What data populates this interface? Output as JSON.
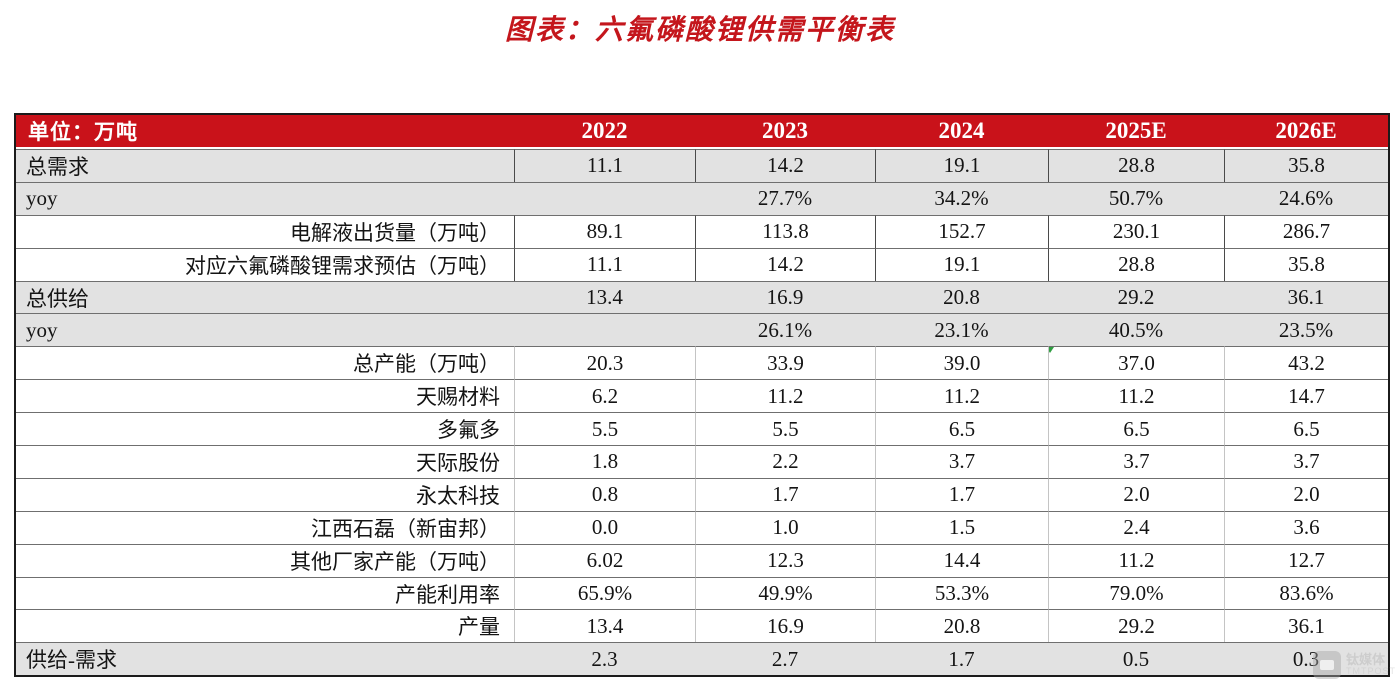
{
  "title": "图表：六氟磷酸锂供需平衡表",
  "colors": {
    "header_red": "#c9121a",
    "title_red": "#c4161c",
    "gray_row": "#e2e2e2",
    "marker_green": "#2f9e41"
  },
  "table": {
    "unit_label": "单位：万吨",
    "years": [
      "2022",
      "2023",
      "2024",
      "2025E",
      "2026E"
    ],
    "rows": [
      {
        "label": "总需求",
        "align": "left",
        "bg": "gray",
        "vlines": "dark",
        "values": [
          "11.1",
          "14.2",
          "19.1",
          "28.8",
          "35.8"
        ]
      },
      {
        "label": "yoy",
        "align": "left",
        "bg": "gray",
        "vlines": "none",
        "values": [
          "",
          "27.7%",
          "34.2%",
          "50.7%",
          "24.6%"
        ]
      },
      {
        "label": "电解液出货量（万吨）",
        "align": "right",
        "bg": "white",
        "vlines": "dark",
        "values": [
          "89.1",
          "113.8",
          "152.7",
          "230.1",
          "286.7"
        ]
      },
      {
        "label": "对应六氟磷酸锂需求预估（万吨）",
        "align": "right",
        "bg": "white",
        "vlines": "dark",
        "values": [
          "11.1",
          "14.2",
          "19.1",
          "28.8",
          "35.8"
        ]
      },
      {
        "label": "总供给",
        "align": "left",
        "bg": "gray",
        "vlines": "none",
        "values": [
          "13.4",
          "16.9",
          "20.8",
          "29.2",
          "36.1"
        ]
      },
      {
        "label": "yoy",
        "align": "left",
        "bg": "gray",
        "vlines": "none",
        "values": [
          "",
          "26.1%",
          "23.1%",
          "40.5%",
          "23.5%"
        ]
      },
      {
        "label": "总产能（万吨）",
        "align": "right",
        "bg": "white",
        "vlines": "light",
        "values": [
          "20.3",
          "33.9",
          "39.0",
          "37.0",
          "43.2"
        ]
      },
      {
        "label": "天赐材料",
        "align": "right",
        "bg": "white",
        "vlines": "light",
        "values": [
          "6.2",
          "11.2",
          "11.2",
          "11.2",
          "14.7"
        ]
      },
      {
        "label": "多氟多",
        "align": "right",
        "bg": "white",
        "vlines": "light",
        "values": [
          "5.5",
          "5.5",
          "6.5",
          "6.5",
          "6.5"
        ]
      },
      {
        "label": "天际股份",
        "align": "right",
        "bg": "white",
        "vlines": "light",
        "values": [
          "1.8",
          "2.2",
          "3.7",
          "3.7",
          "3.7"
        ]
      },
      {
        "label": "永太科技",
        "align": "right",
        "bg": "white",
        "vlines": "light",
        "values": [
          "0.8",
          "1.7",
          "1.7",
          "2.0",
          "2.0"
        ]
      },
      {
        "label": "江西石磊（新宙邦）",
        "align": "right",
        "bg": "white",
        "vlines": "light",
        "values": [
          "0.0",
          "1.0",
          "1.5",
          "2.4",
          "3.6"
        ]
      },
      {
        "label": "其他厂家产能（万吨）",
        "align": "right",
        "bg": "white",
        "vlines": "light",
        "values": [
          "6.02",
          "12.3",
          "14.4",
          "11.2",
          "12.7"
        ]
      },
      {
        "label": "产能利用率",
        "align": "right",
        "bg": "white",
        "vlines": "light",
        "values": [
          "65.9%",
          "49.9%",
          "53.3%",
          "79.0%",
          "83.6%"
        ]
      },
      {
        "label": "产量",
        "align": "right",
        "bg": "white",
        "vlines": "light",
        "values": [
          "13.4",
          "16.9",
          "20.8",
          "29.2",
          "36.1"
        ]
      },
      {
        "label": "供给-需求",
        "align": "left",
        "bg": "gray",
        "vlines": "none",
        "values": [
          "2.3",
          "2.7",
          "1.7",
          "0.5",
          "0.3"
        ]
      }
    ],
    "comment_marker": {
      "row_index": 6,
      "col_index": 3
    }
  },
  "watermark": {
    "line1": "钛媒体",
    "line2": "TMTPOST"
  },
  "chart_data": {
    "type": "table",
    "title": "图表：六氟磷酸锂供需平衡表",
    "unit": "万吨",
    "columns": [
      "2022",
      "2023",
      "2024",
      "2025E",
      "2026E"
    ],
    "rows": [
      {
        "label": "总需求",
        "values": [
          11.1,
          14.2,
          19.1,
          28.8,
          35.8
        ]
      },
      {
        "label": "yoy",
        "values": [
          null,
          "27.7%",
          "34.2%",
          "50.7%",
          "24.6%"
        ]
      },
      {
        "label": "电解液出货量（万吨）",
        "values": [
          89.1,
          113.8,
          152.7,
          230.1,
          286.7
        ]
      },
      {
        "label": "对应六氟磷酸锂需求预估（万吨）",
        "values": [
          11.1,
          14.2,
          19.1,
          28.8,
          35.8
        ]
      },
      {
        "label": "总供给",
        "values": [
          13.4,
          16.9,
          20.8,
          29.2,
          36.1
        ]
      },
      {
        "label": "yoy",
        "values": [
          null,
          "26.1%",
          "23.1%",
          "40.5%",
          "23.5%"
        ]
      },
      {
        "label": "总产能（万吨）",
        "values": [
          20.3,
          33.9,
          39.0,
          37.0,
          43.2
        ]
      },
      {
        "label": "天赐材料",
        "values": [
          6.2,
          11.2,
          11.2,
          11.2,
          14.7
        ]
      },
      {
        "label": "多氟多",
        "values": [
          5.5,
          5.5,
          6.5,
          6.5,
          6.5
        ]
      },
      {
        "label": "天际股份",
        "values": [
          1.8,
          2.2,
          3.7,
          3.7,
          3.7
        ]
      },
      {
        "label": "永太科技",
        "values": [
          0.8,
          1.7,
          1.7,
          2.0,
          2.0
        ]
      },
      {
        "label": "江西石磊（新宙邦）",
        "values": [
          0.0,
          1.0,
          1.5,
          2.4,
          3.6
        ]
      },
      {
        "label": "其他厂家产能（万吨）",
        "values": [
          6.02,
          12.3,
          14.4,
          11.2,
          12.7
        ]
      },
      {
        "label": "产能利用率",
        "values": [
          "65.9%",
          "49.9%",
          "53.3%",
          "79.0%",
          "83.6%"
        ]
      },
      {
        "label": "产量",
        "values": [
          13.4,
          16.9,
          20.8,
          29.2,
          36.1
        ]
      },
      {
        "label": "供给-需求",
        "values": [
          2.3,
          2.7,
          1.7,
          0.5,
          0.3
        ]
      }
    ]
  }
}
